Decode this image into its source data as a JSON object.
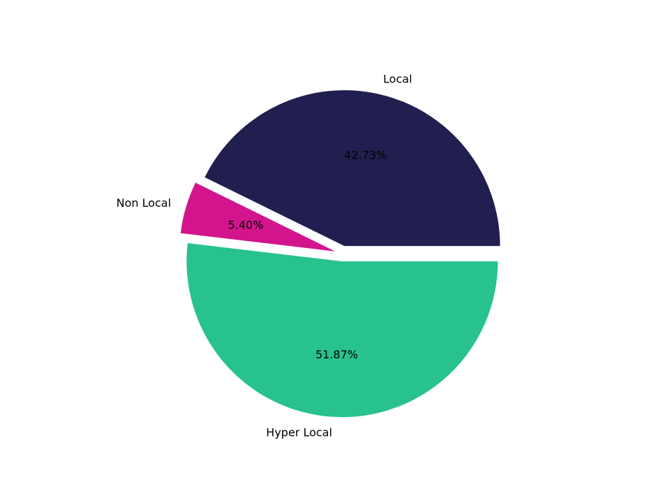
{
  "chart_data": {
    "type": "pie",
    "title": "",
    "labels": [
      "Local",
      "Non Local",
      "Hyper Local"
    ],
    "values_pct": [
      42.73,
      5.4,
      51.87
    ],
    "pct_labels": [
      "42.73%",
      "5.40%",
      "51.87%"
    ],
    "colors": [
      "#211e50",
      "#d3158d",
      "#27c28f"
    ],
    "label_color": "#000000",
    "background": "#ffffff",
    "start_angle_deg": 0,
    "direction": "counterclockwise",
    "explode": [
      0.05,
      0.05,
      0.05
    ],
    "label_distance": 1.1,
    "pct_distance": 0.6,
    "legend": "none"
  }
}
